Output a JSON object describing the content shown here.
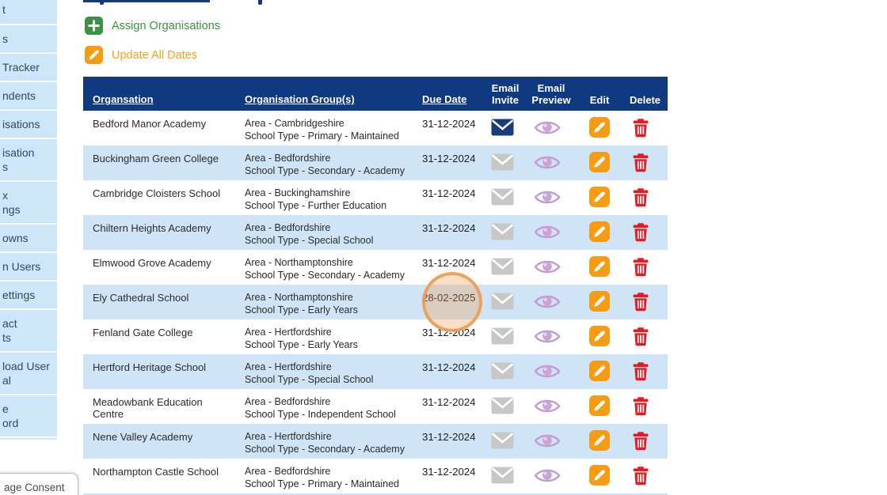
{
  "colors": {
    "header-navy": "#0F3A80",
    "row-alt": "#CFE5F7",
    "sidebar-blue": "#CDE7F8",
    "sidebar-text": "#2C4A63",
    "green": "#3D9142",
    "orange": "#F59B14",
    "orange-text": "#F5A11B",
    "red": "#E11D23",
    "purple-stroke": "#C49BD4",
    "purple-fill": "#C8A3D8",
    "envelope-navy": "#1A3A7D",
    "envelope-gray": "#C7C7C7",
    "highlight-orange": "#EC9C52"
  },
  "sidebar": {
    "items": [
      {
        "lines": [
          "t"
        ]
      },
      {
        "lines": [
          "s"
        ]
      },
      {
        "lines": [
          "Tracker"
        ]
      },
      {
        "lines": [
          "ndents"
        ]
      },
      {
        "lines": [
          "isations"
        ]
      },
      {
        "lines": [
          "isation",
          "s"
        ]
      },
      {
        "lines": [
          "x",
          "ngs"
        ]
      },
      {
        "lines": [
          "owns"
        ]
      },
      {
        "lines": [
          "n Users"
        ]
      },
      {
        "lines": [
          "ettings"
        ]
      },
      {
        "lines": [
          "act",
          "ts"
        ]
      },
      {
        "lines": [
          "load User",
          "al"
        ]
      },
      {
        "lines": [
          "e",
          "ord"
        ]
      }
    ]
  },
  "consent": {
    "label": "age Consent"
  },
  "actions": {
    "assign_label": "Assign Organisations",
    "assign_icon": "plus-icon",
    "update_label": "Update All Dates",
    "update_icon": "pencil-icon"
  },
  "table": {
    "columns": [
      {
        "label": "Organsation",
        "sortable": true
      },
      {
        "label": "Organisation Group(s)",
        "sortable": true
      },
      {
        "label": "Due Date",
        "sortable": true
      },
      {
        "label": "Email Invite",
        "sortable": false
      },
      {
        "label": "Email Preview",
        "sortable": false
      },
      {
        "label": "Edit",
        "sortable": false
      },
      {
        "label": "Delete",
        "sortable": false
      }
    ],
    "row_icons": {
      "invite": "envelope-icon",
      "preview": "eye-icon",
      "edit": "pencil-icon",
      "delete": "trash-icon"
    },
    "rows": [
      {
        "organisation": "Bedford Manor Academy",
        "group_lines": [
          "Area - Cambridgeshire",
          "School Type - Primary - Maintained"
        ],
        "due_date": "31-12-2024",
        "email_invite_active": true,
        "highlighted": false
      },
      {
        "organisation": "Buckingham Green College",
        "group_lines": [
          "Area - Bedfordshire",
          "School Type - Secondary - Academy"
        ],
        "due_date": "31-12-2024",
        "email_invite_active": false,
        "highlighted": false
      },
      {
        "organisation": "Cambridge Cloisters School",
        "group_lines": [
          "Area - Buckinghamshire",
          "School Type - Further Education"
        ],
        "due_date": "31-12-2024",
        "email_invite_active": false,
        "highlighted": false
      },
      {
        "organisation": "Chiltern Heights Academy",
        "group_lines": [
          "Area - Bedfordshire",
          "School Type - Special School"
        ],
        "due_date": "31-12-2024",
        "email_invite_active": false,
        "highlighted": false
      },
      {
        "organisation": "Elmwood Grove Academy",
        "group_lines": [
          "Area - Northamptonshire",
          "School Type - Secondary - Academy"
        ],
        "due_date": "31-12-2024",
        "email_invite_active": false,
        "highlighted": false
      },
      {
        "organisation": "Ely Cathedral School",
        "group_lines": [
          "Area - Northamptonshire",
          "School Type - Early Years"
        ],
        "due_date": "28-02-2025",
        "email_invite_active": false,
        "highlighted": true
      },
      {
        "organisation": "Fenland Gate College",
        "group_lines": [
          "Area - Hertfordshire",
          "School Type - Early Years"
        ],
        "due_date": "31-12-2024",
        "email_invite_active": false,
        "highlighted": false
      },
      {
        "organisation": "Hertford Heritage School",
        "group_lines": [
          "Area - Hertfordshire",
          "School Type - Special School"
        ],
        "due_date": "31-12-2024",
        "email_invite_active": false,
        "highlighted": false
      },
      {
        "organisation": "Meadowbank Education Centre",
        "group_lines": [
          "Area - Bedfordshire",
          "School Type - Independent School"
        ],
        "due_date": "31-12-2024",
        "email_invite_active": false,
        "highlighted": false
      },
      {
        "organisation": "Nene Valley Academy",
        "group_lines": [
          "Area - Hertfordshire",
          "School Type - Secondary - Academy"
        ],
        "due_date": "31-12-2024",
        "email_invite_active": false,
        "highlighted": false
      },
      {
        "organisation": "Northampton Castle School",
        "group_lines": [
          "Area - Bedfordshire",
          "School Type - Primary - Maintained"
        ],
        "due_date": "31-12-2024",
        "email_invite_active": false,
        "highlighted": false
      }
    ]
  },
  "annotation": {
    "type": "highlight-circle",
    "highlighted_value": "28-02-2025",
    "color": "#EC9C52"
  }
}
